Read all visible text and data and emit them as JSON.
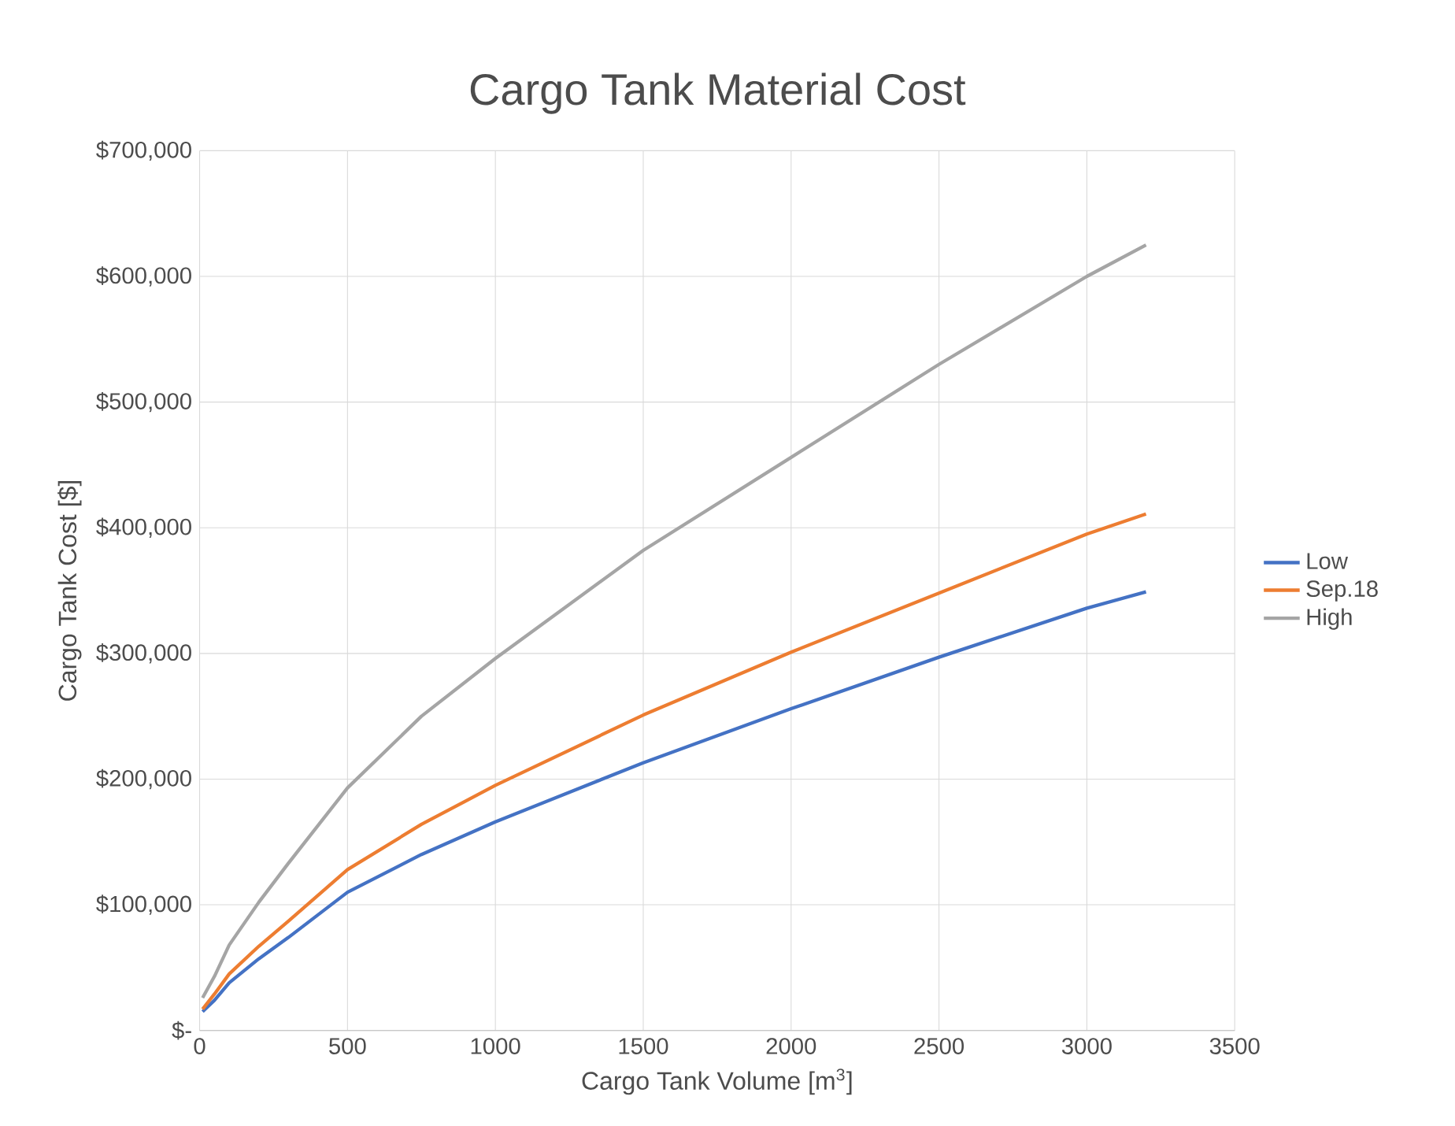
{
  "chart_data": {
    "type": "line",
    "title": "Cargo Tank Material Cost",
    "xlabel": "Cargo Tank Volume [m$^{3}$]",
    "ylabel": "Cargo Tank Cost [$]",
    "x": [
      10,
      50,
      100,
      200,
      300,
      500,
      750,
      1000,
      1500,
      2000,
      2500,
      3000,
      3200
    ],
    "series": [
      {
        "name": "Low",
        "color": "#4472c4",
        "values": [
          15000,
          24000,
          38000,
          57000,
          74000,
          110000,
          140000,
          166000,
          213000,
          256000,
          297000,
          336000,
          349000
        ]
      },
      {
        "name": "Sep.18",
        "color": "#ed7d31",
        "values": [
          17000,
          29000,
          45000,
          67000,
          87000,
          128000,
          164000,
          195000,
          251000,
          301000,
          348000,
          395000,
          411000
        ]
      },
      {
        "name": "High",
        "color": "#a5a5a5",
        "values": [
          26000,
          43000,
          68000,
          102000,
          133000,
          193000,
          250000,
          296000,
          382000,
          456000,
          530000,
          600000,
          625000
        ]
      }
    ],
    "xlim": [
      0,
      3500
    ],
    "xticks": [
      0,
      500,
      1000,
      1500,
      2000,
      2500,
      3000,
      3500
    ],
    "ylim": [
      0,
      700000
    ],
    "yticks": [
      {
        "value": 0,
        "label": "$-"
      },
      {
        "value": 100000,
        "label": "$100,000"
      },
      {
        "value": 200000,
        "label": "$200,000"
      },
      {
        "value": 300000,
        "label": "$300,000"
      },
      {
        "value": 400000,
        "label": "$400,000"
      },
      {
        "value": 500000,
        "label": "$500,000"
      },
      {
        "value": 600000,
        "label": "$600,000"
      },
      {
        "value": 700000,
        "label": "$700,000"
      }
    ],
    "grid": true,
    "legend": "right",
    "marker": "none",
    "line_style": "solid"
  }
}
